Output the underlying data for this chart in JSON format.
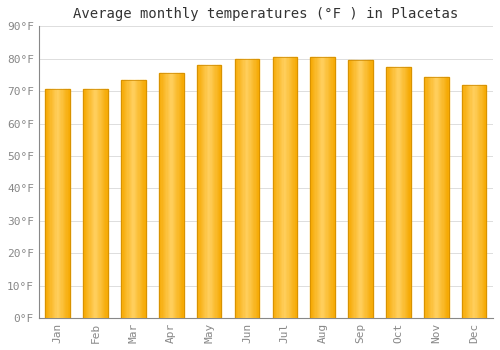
{
  "title": "Average monthly temperatures (°F ) in Placetas",
  "months": [
    "Jan",
    "Feb",
    "Mar",
    "Apr",
    "May",
    "Jun",
    "Jul",
    "Aug",
    "Sep",
    "Oct",
    "Nov",
    "Dec"
  ],
  "values": [
    70.5,
    70.5,
    73.5,
    75.5,
    78,
    80,
    80.5,
    80.5,
    79.5,
    77.5,
    74.5,
    72
  ],
  "bar_color_outer": "#F5A800",
  "bar_color_inner": "#FFD060",
  "bar_edge_color": "#CC8800",
  "background_color": "#FFFFFF",
  "plot_bg_color": "#FFFFFF",
  "ylim": [
    0,
    90
  ],
  "yticks": [
    0,
    10,
    20,
    30,
    40,
    50,
    60,
    70,
    80,
    90
  ],
  "ytick_labels": [
    "0°F",
    "10°F",
    "20°F",
    "30°F",
    "40°F",
    "50°F",
    "60°F",
    "70°F",
    "80°F",
    "90°F"
  ],
  "grid_color": "#DDDDDD",
  "title_fontsize": 10,
  "tick_fontsize": 8,
  "font_family": "monospace",
  "tick_color": "#888888",
  "spine_color": "#888888"
}
